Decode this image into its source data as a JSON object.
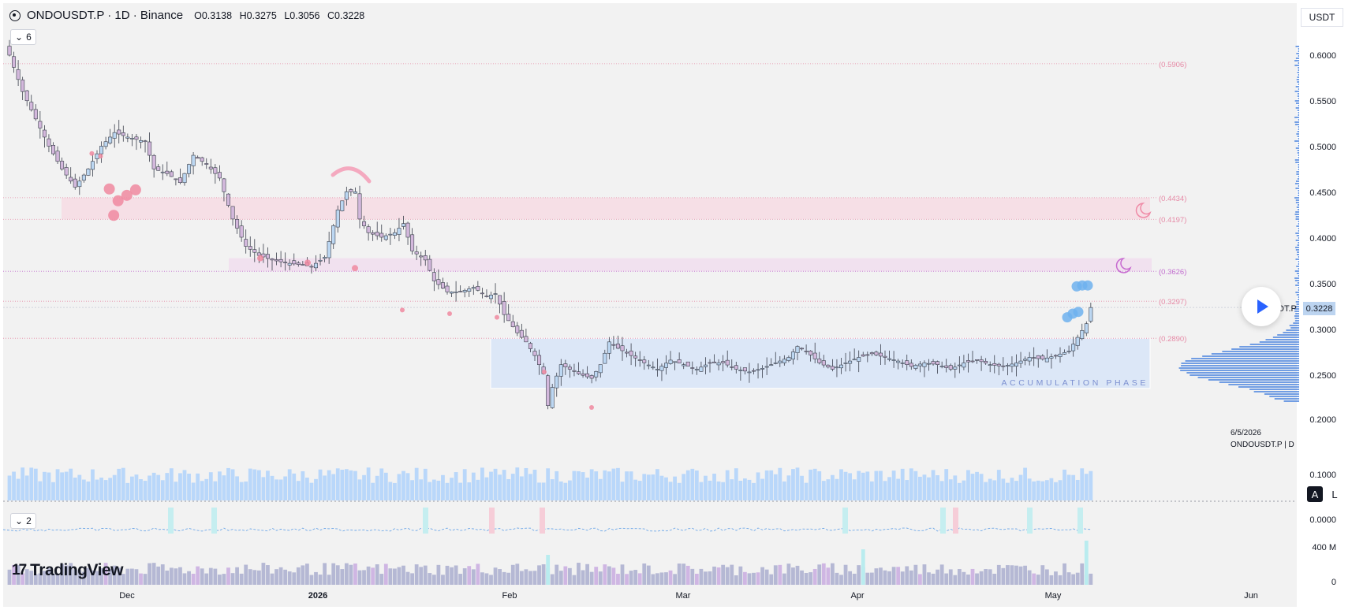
{
  "header": {
    "symbol": "ONDOUSDT.P · 1D · Binance",
    "open": "O0.3138",
    "high": "H0.3275",
    "low": "L0.3056",
    "close": "C0.3228",
    "indicator_count": "6"
  },
  "currency_label": "USDT",
  "price_axis": {
    "ticks": [
      "0.6000",
      "0.5500",
      "0.5000",
      "0.4500",
      "0.4000",
      "0.3500",
      "0.3000",
      "0.2500",
      "0.2000",
      "0.1000",
      "0.0000",
      "400 M",
      "0"
    ],
    "current_price": "0.3228",
    "current_symbol": "DT.P"
  },
  "time_axis": {
    "labels": [
      "Dec",
      "2026",
      "Feb",
      "Mar",
      "Apr",
      "May",
      "Jun"
    ]
  },
  "levels": {
    "labels": [
      "(0.5906)",
      "(0.4434)",
      "(0.4197)",
      "(0.3626)",
      "(0.3297)",
      "(0.2890)"
    ]
  },
  "annotations": {
    "zone_label": "ACCUMULATION PHASE"
  },
  "info": {
    "date": "6/5/2026",
    "symbol_interval": "ONDOUSDT.P | D"
  },
  "panes": {
    "secondary_indicator_count": "2"
  },
  "buttons": {
    "auto_label": "A",
    "log_label": "L"
  },
  "logo": {
    "mark": "17",
    "text": "TradingView"
  },
  "colors": {
    "bull_candle": "#bcd7f2",
    "bear_candle": "#d3b8dc",
    "accumulation_zone": "#dce7f7",
    "resistance_zone": "#f6dfe6",
    "level_line": "#e68aa6",
    "volume_bar": "#b9d7fa",
    "bubble_pink": "#f08aa0",
    "bubble_blue": "#6fb2ee",
    "accent": "#2962ff"
  },
  "chart_data": {
    "type": "candlestick",
    "symbol": "ONDOUSDT.P",
    "interval": "1D",
    "exchange": "Binance",
    "ylim": [
      0.2,
      0.62
    ],
    "horizontal_levels": [
      0.5906,
      0.4434,
      0.4197,
      0.3626,
      0.3297,
      0.289
    ],
    "zones": [
      {
        "low": 0.4197,
        "high": 0.4434
      },
      {
        "low": 0.3626,
        "high": 0.377
      },
      {
        "low": 0.234,
        "high": 0.289,
        "label": "ACCUMULATION PHASE"
      }
    ],
    "close_path": [
      [
        0,
        0.6
      ],
      [
        3,
        0.56
      ],
      [
        6,
        0.53
      ],
      [
        9,
        0.5
      ],
      [
        12,
        0.475
      ],
      [
        15,
        0.455
      ],
      [
        18,
        0.475
      ],
      [
        21,
        0.5
      ],
      [
        24,
        0.515
      ],
      [
        27,
        0.51
      ],
      [
        31,
        0.505
      ],
      [
        33,
        0.475
      ],
      [
        36,
        0.47
      ],
      [
        39,
        0.46
      ],
      [
        42,
        0.49
      ],
      [
        45,
        0.48
      ],
      [
        48,
        0.465
      ],
      [
        51,
        0.42
      ],
      [
        54,
        0.39
      ],
      [
        57,
        0.38
      ],
      [
        60,
        0.375
      ],
      [
        63,
        0.372
      ],
      [
        66,
        0.37
      ],
      [
        69,
        0.368
      ],
      [
        72,
        0.378
      ],
      [
        75,
        0.43
      ],
      [
        77,
        0.45
      ],
      [
        79,
        0.45
      ],
      [
        80,
        0.42
      ],
      [
        82,
        0.405
      ],
      [
        85,
        0.4
      ],
      [
        88,
        0.405
      ],
      [
        90,
        0.415
      ],
      [
        92,
        0.385
      ],
      [
        95,
        0.375
      ],
      [
        97,
        0.352
      ],
      [
        100,
        0.34
      ],
      [
        103,
        0.34
      ],
      [
        106,
        0.345
      ],
      [
        109,
        0.335
      ],
      [
        111,
        0.338
      ],
      [
        113,
        0.315
      ],
      [
        116,
        0.295
      ],
      [
        118,
        0.285
      ],
      [
        120,
        0.27
      ],
      [
        122,
        0.25
      ],
      [
        123,
        0.215
      ],
      [
        124,
        0.235
      ],
      [
        126,
        0.26
      ],
      [
        128,
        0.255
      ],
      [
        130,
        0.25
      ],
      [
        133,
        0.245
      ],
      [
        135,
        0.26
      ],
      [
        137,
        0.285
      ],
      [
        139,
        0.278
      ],
      [
        142,
        0.27
      ],
      [
        145,
        0.262
      ],
      [
        148,
        0.255
      ],
      [
        151,
        0.265
      ],
      [
        154,
        0.26
      ],
      [
        157,
        0.255
      ],
      [
        160,
        0.262
      ],
      [
        163,
        0.262
      ],
      [
        166,
        0.255
      ],
      [
        169,
        0.252
      ],
      [
        172,
        0.256
      ],
      [
        175,
        0.262
      ],
      [
        178,
        0.268
      ],
      [
        180,
        0.28
      ],
      [
        182,
        0.275
      ],
      [
        185,
        0.262
      ],
      [
        188,
        0.255
      ],
      [
        191,
        0.262
      ],
      [
        194,
        0.268
      ],
      [
        197,
        0.272
      ],
      [
        200,
        0.268
      ],
      [
        203,
        0.264
      ],
      [
        206,
        0.258
      ],
      [
        209,
        0.262
      ],
      [
        212,
        0.26
      ],
      [
        215,
        0.255
      ],
      [
        218,
        0.262
      ],
      [
        221,
        0.265
      ],
      [
        224,
        0.26
      ],
      [
        227,
        0.258
      ],
      [
        230,
        0.262
      ],
      [
        233,
        0.268
      ],
      [
        236,
        0.266
      ],
      [
        239,
        0.27
      ],
      [
        242,
        0.275
      ],
      [
        244,
        0.29
      ],
      [
        246,
        0.305
      ],
      [
        247,
        0.3228
      ]
    ],
    "volume_scale_label": "0.1000",
    "oscillator_zero": "0.0000",
    "lower_volume_max": "400 M"
  }
}
